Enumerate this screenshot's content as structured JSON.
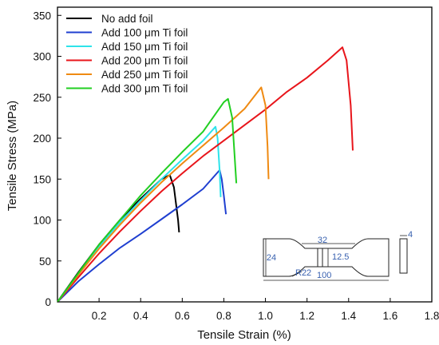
{
  "chart_data": {
    "type": "line",
    "xlabel": "Tensile Strain (%)",
    "ylabel": "Tensile Stress (MPa)",
    "xlim": [
      0,
      1.8
    ],
    "ylim": [
      0,
      360
    ],
    "x_ticks": [
      0.2,
      0.4,
      0.6,
      0.8,
      1.0,
      1.2,
      1.4,
      1.6,
      1.8
    ],
    "y_ticks": [
      0,
      50,
      100,
      150,
      200,
      250,
      300,
      350
    ],
    "grid": false,
    "legend_position": "top-left",
    "series": [
      {
        "name": "No add foil",
        "color": "#000000",
        "x": [
          0,
          0.1,
          0.2,
          0.3,
          0.4,
          0.5,
          0.54,
          0.56,
          0.57,
          0.58,
          0.585
        ],
        "y": [
          0,
          36,
          70,
          100,
          126,
          150,
          155,
          140,
          120,
          100,
          85
        ]
      },
      {
        "name": "Add 100 μm Ti foil",
        "color": "#1f3fd0",
        "x": [
          0,
          0.1,
          0.2,
          0.3,
          0.4,
          0.5,
          0.6,
          0.7,
          0.78,
          0.79,
          0.8,
          0.81
        ],
        "y": [
          0,
          25,
          46,
          66,
          83,
          101,
          119,
          138,
          161,
          150,
          130,
          107
        ]
      },
      {
        "name": "Add 150 μm Ti foil",
        "color": "#2ee3ea",
        "x": [
          0,
          0.1,
          0.2,
          0.3,
          0.4,
          0.5,
          0.6,
          0.7,
          0.76,
          0.77,
          0.78,
          0.785
        ],
        "y": [
          0,
          34,
          67,
          97,
          124,
          150,
          174,
          197,
          214,
          200,
          160,
          128
        ]
      },
      {
        "name": "Add 200 μm Ti foil",
        "color": "#e8151b",
        "x": [
          0,
          0.1,
          0.2,
          0.3,
          0.4,
          0.5,
          0.6,
          0.7,
          0.8,
          0.9,
          1.0,
          1.1,
          1.2,
          1.3,
          1.37,
          1.39,
          1.41,
          1.42
        ],
        "y": [
          0,
          30,
          59,
          86,
          111,
          135,
          157,
          178,
          197,
          216,
          235,
          256,
          274,
          295,
          311,
          295,
          240,
          185
        ]
      },
      {
        "name": "Add 250 μm Ti foil",
        "color": "#ef8a12",
        "x": [
          0,
          0.1,
          0.2,
          0.3,
          0.4,
          0.5,
          0.6,
          0.7,
          0.8,
          0.9,
          0.98,
          1.0,
          1.01,
          1.015
        ],
        "y": [
          0,
          33,
          65,
          94,
          121,
          146,
          169,
          191,
          213,
          236,
          262,
          240,
          190,
          150
        ]
      },
      {
        "name": "Add 300 μm Ti foil",
        "color": "#22cf22",
        "x": [
          0,
          0.1,
          0.2,
          0.3,
          0.4,
          0.5,
          0.6,
          0.7,
          0.8,
          0.82,
          0.84,
          0.85,
          0.86
        ],
        "y": [
          0,
          35,
          70,
          100,
          130,
          157,
          183,
          208,
          244,
          248,
          225,
          185,
          145
        ]
      }
    ]
  },
  "inset": {
    "dimensions": [
      "32",
      "24",
      "12.5",
      "R22",
      "100",
      "4"
    ]
  }
}
